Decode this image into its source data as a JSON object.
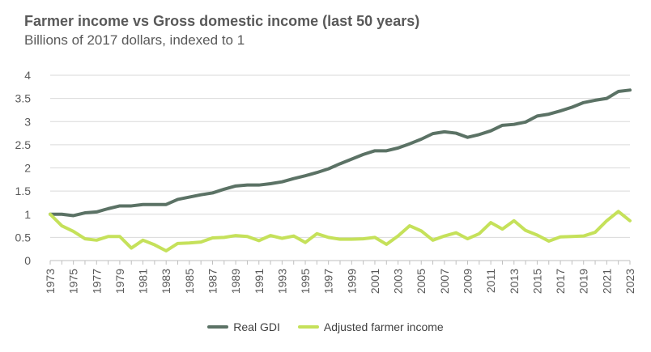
{
  "chart_data": {
    "type": "line",
    "title": "Farmer income vs Gross domestic income (last 50 years)",
    "subtitle": "Billions of 2017 dollars,  indexed to 1",
    "ylim": [
      0,
      4
    ],
    "yticks": [
      "0",
      "0.5",
      "1",
      "1.5",
      "2",
      "2.5",
      "3",
      "3.5",
      "4"
    ],
    "x": [
      1973,
      1974,
      1975,
      1976,
      1977,
      1978,
      1979,
      1980,
      1981,
      1982,
      1983,
      1984,
      1985,
      1986,
      1987,
      1988,
      1989,
      1990,
      1991,
      1992,
      1993,
      1994,
      1995,
      1996,
      1997,
      1998,
      1999,
      2000,
      2001,
      2002,
      2003,
      2004,
      2005,
      2006,
      2007,
      2008,
      2009,
      2010,
      2011,
      2012,
      2013,
      2014,
      2015,
      2016,
      2017,
      2018,
      2019,
      2020,
      2021,
      2022,
      2023
    ],
    "xtick_labels": [
      "1973",
      "1975",
      "1977",
      "1979",
      "1981",
      "1983",
      "1985",
      "1987",
      "1989",
      "1991",
      "1993",
      "1995",
      "1997",
      "1999",
      "2001",
      "2003",
      "2005",
      "2007",
      "2009",
      "2011",
      "2013",
      "2015",
      "2017",
      "2019",
      "2021",
      "2023"
    ],
    "grid": true,
    "legend_position": "bottom",
    "series": [
      {
        "name": "Real GDI",
        "color": "#5b7265",
        "values": [
          1.0,
          1.0,
          0.97,
          1.03,
          1.05,
          1.12,
          1.18,
          1.18,
          1.21,
          1.21,
          1.21,
          1.32,
          1.37,
          1.42,
          1.46,
          1.54,
          1.61,
          1.63,
          1.63,
          1.66,
          1.7,
          1.77,
          1.83,
          1.9,
          1.98,
          2.09,
          2.19,
          2.29,
          2.37,
          2.37,
          2.43,
          2.52,
          2.62,
          2.74,
          2.78,
          2.75,
          2.66,
          2.72,
          2.8,
          2.92,
          2.94,
          2.99,
          3.12,
          3.16,
          3.23,
          3.31,
          3.41,
          3.46,
          3.5,
          3.65,
          3.68
        ]
      },
      {
        "name": "Adjusted farmer income",
        "color": "#c5e15a",
        "values": [
          1.0,
          0.75,
          0.63,
          0.47,
          0.44,
          0.52,
          0.52,
          0.27,
          0.44,
          0.34,
          0.21,
          0.37,
          0.38,
          0.4,
          0.49,
          0.5,
          0.54,
          0.52,
          0.43,
          0.54,
          0.48,
          0.53,
          0.39,
          0.58,
          0.5,
          0.46,
          0.46,
          0.47,
          0.5,
          0.35,
          0.53,
          0.75,
          0.64,
          0.44,
          0.53,
          0.6,
          0.47,
          0.58,
          0.82,
          0.68,
          0.86,
          0.65,
          0.55,
          0.42,
          0.51,
          0.52,
          0.53,
          0.61,
          0.86,
          1.06,
          0.86
        ]
      }
    ]
  }
}
